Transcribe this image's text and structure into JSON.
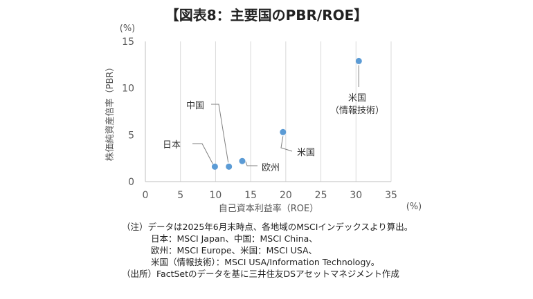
{
  "chart_data": {
    "type": "scatter",
    "title": "【図表8：主要国のPBR/ROE】",
    "xlabel": "自己資本利益率（ROE）",
    "ylabel": "株価純資産倍率（PBR）",
    "x_unit": "(%)",
    "y_unit": "(%)",
    "xlim": [
      0,
      35
    ],
    "ylim": [
      0,
      15
    ],
    "xticks": [
      0,
      5,
      10,
      15,
      20,
      25,
      30,
      35
    ],
    "yticks": [
      0,
      5,
      10,
      15
    ],
    "grid": "vertical",
    "point_color": "#5b9bd5",
    "points": [
      {
        "label": "日本",
        "x": 9.9,
        "y": 1.6
      },
      {
        "label": "中国",
        "x": 11.9,
        "y": 1.6
      },
      {
        "label": "欧州",
        "x": 13.8,
        "y": 2.2
      },
      {
        "label": "米国",
        "x": 19.6,
        "y": 5.3
      },
      {
        "label": "米国\n（情報技術）",
        "x": 30.4,
        "y": 12.9
      }
    ]
  },
  "notes": [
    "（注）データは2025年6月末時点、各地域のMSCIインデックスより算出。",
    "日本：MSCI Japan、中国：MSCI China、",
    "欧州：MSCI Europe、米国：MSCI USA、",
    "米国（情報技術）：MSCI USA/Information Technology。",
    "（出所）FactSetのデータを基に三井住友DSアセットマネジメント作成"
  ]
}
